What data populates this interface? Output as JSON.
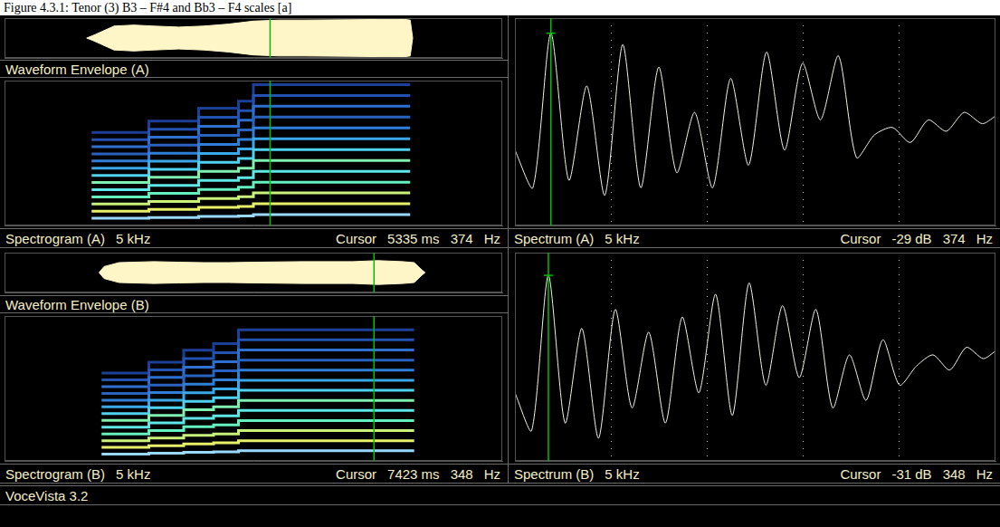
{
  "title": "Figure 4.3.1: Tenor (3) B3 – F#4 and Bb3 – F4 scales [a]",
  "footer": "VoceVista 3.2",
  "chart_data": [
    {
      "type": "area",
      "title": "Waveform Envelope (A)",
      "color": "#fff6c8",
      "tick_labels": false,
      "xlim": [
        0,
        10000
      ],
      "ylim": [
        -1,
        1
      ],
      "cursor": {
        "x": 5335
      },
      "x": [
        1650,
        1800,
        2200,
        2600,
        3000,
        3500,
        4000,
        4500,
        5000,
        5500,
        6000,
        7000,
        8000,
        8150,
        8200
      ],
      "upper": [
        0,
        0.15,
        0.6,
        0.65,
        0.6,
        0.55,
        0.6,
        0.7,
        0.85,
        0.9,
        0.9,
        0.92,
        0.95,
        0.9,
        0
      ],
      "lower": [
        0,
        -0.15,
        -0.6,
        -0.65,
        -0.6,
        -0.55,
        -0.6,
        -0.7,
        -0.85,
        -0.9,
        -0.9,
        -0.92,
        -0.95,
        -0.9,
        0
      ]
    },
    {
      "type": "spectrogram",
      "title": "Spectrogram (A)",
      "annotations": [
        "5 kHz",
        "Cursor",
        "5335 ms",
        "374",
        "Hz"
      ],
      "tick_labels": false,
      "xlim": [
        0,
        10000
      ],
      "ylim": [
        0,
        5000
      ],
      "cursor": {
        "x": 5335
      },
      "x": [
        1750,
        2900,
        2900,
        3900,
        3900,
        4700,
        4700,
        5000,
        5000,
        8150
      ],
      "series": [
        {
          "color": "#9ad9ff",
          "values": [
            247,
            247,
            277,
            277,
            311,
            311,
            330,
            330,
            374,
            374
          ]
        },
        {
          "color": "#e8f06a",
          "values": [
            494,
            494,
            554,
            554,
            622,
            622,
            660,
            660,
            748,
            748
          ]
        },
        {
          "color": "#c9f27a",
          "values": [
            741,
            741,
            831,
            831,
            933,
            933,
            990,
            990,
            1122,
            1122
          ]
        },
        {
          "color": "#64f0c0",
          "values": [
            988,
            988,
            1108,
            1108,
            1244,
            1244,
            1320,
            1320,
            1496,
            1496
          ]
        },
        {
          "color": "#5fe6e6",
          "values": [
            1235,
            1235,
            1385,
            1385,
            1555,
            1555,
            1650,
            1650,
            1870,
            1870
          ]
        },
        {
          "color": "#7ff0b0",
          "values": [
            1482,
            1482,
            1662,
            1662,
            1866,
            1866,
            1980,
            1980,
            2244,
            2244
          ]
        },
        {
          "color": "#4fd2f0",
          "values": [
            1729,
            1729,
            1939,
            1939,
            2177,
            2177,
            2310,
            2310,
            2618,
            2618
          ]
        },
        {
          "color": "#3aa8e8",
          "values": [
            1976,
            1976,
            2216,
            2216,
            2488,
            2488,
            2640,
            2640,
            2992,
            2992
          ]
        },
        {
          "color": "#2f7fd8",
          "values": [
            2223,
            2223,
            2493,
            2493,
            2799,
            2799,
            2970,
            2970,
            3366,
            3366
          ]
        },
        {
          "color": "#2a62c0",
          "values": [
            2470,
            2470,
            2770,
            2770,
            3110,
            3110,
            3300,
            3300,
            3740,
            3740
          ]
        },
        {
          "color": "#2f6fd0",
          "values": [
            2717,
            2717,
            3047,
            3047,
            3421,
            3421,
            3630,
            3630,
            4114,
            4114
          ]
        },
        {
          "color": "#2452b0",
          "values": [
            2964,
            2964,
            3324,
            3324,
            3732,
            3732,
            3960,
            3960,
            4488,
            4488
          ]
        },
        {
          "color": "#1c3f98",
          "values": [
            3211,
            3211,
            3601,
            3601,
            4043,
            4043,
            4290,
            4290,
            4862,
            4862
          ]
        }
      ]
    },
    {
      "type": "line",
      "title": "Spectrum (A)",
      "annotations": [
        "5 kHz",
        "Cursor",
        "-29 dB",
        "374",
        "Hz"
      ],
      "color": "#f2f2e6",
      "grid": true,
      "tick_labels": false,
      "xlim": [
        0,
        5000
      ],
      "ylim": [
        -80,
        -25
      ],
      "xticks": [
        1000,
        2000,
        3000,
        4000
      ],
      "cursor": {
        "x": 374,
        "y": -29
      },
      "x": [
        0,
        187,
        374,
        561,
        748,
        935,
        1122,
        1309,
        1496,
        1683,
        1870,
        2057,
        2244,
        2431,
        2618,
        2805,
        2992,
        3179,
        3366,
        3553,
        3740,
        3927,
        4114,
        4301,
        4488,
        4675,
        4862,
        5000
      ],
      "values": [
        -60,
        -70,
        -29,
        -68,
        -43,
        -72,
        -32,
        -70,
        -38,
        -66,
        -50,
        -70,
        -41,
        -64,
        -34,
        -60,
        -37,
        -52,
        -35,
        -62,
        -56,
        -54,
        -58,
        -52,
        -55,
        -50,
        -53,
        -51
      ]
    },
    {
      "type": "area",
      "title": "Waveform Envelope (B)",
      "color": "#fff6c8",
      "tick_labels": false,
      "xlim": [
        0,
        10000
      ],
      "ylim": [
        -1,
        1
      ],
      "cursor": {
        "x": 7423
      },
      "x": [
        1900,
        2000,
        2300,
        3000,
        3500,
        4000,
        4500,
        5000,
        6000,
        7000,
        7500,
        8000,
        8230,
        8400,
        8450
      ],
      "upper": [
        0,
        0.3,
        0.5,
        0.55,
        0.52,
        0.5,
        0.5,
        0.52,
        0.55,
        0.55,
        0.6,
        0.55,
        0.5,
        0.1,
        0
      ],
      "lower": [
        0,
        -0.3,
        -0.5,
        -0.55,
        -0.52,
        -0.5,
        -0.5,
        -0.52,
        -0.55,
        -0.55,
        -0.6,
        -0.55,
        -0.5,
        -0.1,
        0
      ]
    },
    {
      "type": "spectrogram",
      "title": "Spectrogram (B)",
      "annotations": [
        "5 kHz",
        "Cursor",
        "7423 ms",
        "348",
        "Hz"
      ],
      "tick_labels": false,
      "xlim": [
        0,
        10000
      ],
      "ylim": [
        0,
        5000
      ],
      "cursor": {
        "x": 7423
      },
      "x": [
        1950,
        2900,
        2900,
        3600,
        3600,
        4200,
        4200,
        4700,
        4700,
        8230
      ],
      "series": [
        {
          "color": "#9ad9ff",
          "values": [
            233,
            233,
            262,
            262,
            294,
            294,
            311,
            311,
            348,
            348
          ]
        },
        {
          "color": "#e8f06a",
          "values": [
            466,
            466,
            524,
            524,
            588,
            588,
            622,
            622,
            696,
            696
          ]
        },
        {
          "color": "#c9f27a",
          "values": [
            699,
            699,
            786,
            786,
            882,
            882,
            933,
            933,
            1044,
            1044
          ]
        },
        {
          "color": "#64f0c0",
          "values": [
            932,
            932,
            1048,
            1048,
            1176,
            1176,
            1244,
            1244,
            1392,
            1392
          ]
        },
        {
          "color": "#5fe6e6",
          "values": [
            1165,
            1165,
            1310,
            1310,
            1470,
            1470,
            1555,
            1555,
            1740,
            1740
          ]
        },
        {
          "color": "#7ff0b0",
          "values": [
            1398,
            1398,
            1572,
            1572,
            1764,
            1764,
            1866,
            1866,
            2088,
            2088
          ]
        },
        {
          "color": "#4fd2f0",
          "values": [
            1631,
            1631,
            1834,
            1834,
            2058,
            2058,
            2177,
            2177,
            2436,
            2436
          ]
        },
        {
          "color": "#3aa8e8",
          "values": [
            1864,
            1864,
            2096,
            2096,
            2352,
            2352,
            2488,
            2488,
            2784,
            2784
          ]
        },
        {
          "color": "#2f7fd8",
          "values": [
            2097,
            2097,
            2358,
            2358,
            2646,
            2646,
            2799,
            2799,
            3132,
            3132
          ]
        },
        {
          "color": "#2a62c0",
          "values": [
            2330,
            2330,
            2620,
            2620,
            2940,
            2940,
            3110,
            3110,
            3480,
            3480
          ]
        },
        {
          "color": "#2f6fd0",
          "values": [
            2563,
            2563,
            2882,
            2882,
            3234,
            3234,
            3421,
            3421,
            3828,
            3828
          ]
        },
        {
          "color": "#2452b0",
          "values": [
            2796,
            2796,
            3144,
            3144,
            3528,
            3528,
            3732,
            3732,
            4176,
            4176
          ]
        },
        {
          "color": "#1c3f98",
          "values": [
            3029,
            3029,
            3406,
            3406,
            3822,
            3822,
            4043,
            4043,
            4524,
            4524
          ]
        }
      ]
    },
    {
      "type": "line",
      "title": "Spectrum (B)",
      "annotations": [
        "5 kHz",
        "Cursor",
        "-31 dB",
        "348",
        "Hz"
      ],
      "color": "#f2f2e6",
      "grid": true,
      "tick_labels": false,
      "xlim": [
        0,
        5000
      ],
      "ylim": [
        -80,
        -25
      ],
      "xticks": [
        1000,
        2000,
        3000,
        4000
      ],
      "cursor": {
        "x": 348,
        "y": -31
      },
      "x": [
        0,
        174,
        348,
        522,
        696,
        870,
        1044,
        1218,
        1392,
        1566,
        1740,
        1914,
        2088,
        2262,
        2436,
        2610,
        2784,
        2958,
        3132,
        3306,
        3480,
        3654,
        3828,
        4002,
        4176,
        4350,
        4524,
        4698,
        4872,
        5000
      ],
      "values": [
        -62,
        -72,
        -31,
        -70,
        -45,
        -74,
        -40,
        -66,
        -46,
        -70,
        -42,
        -62,
        -36,
        -68,
        -33,
        -60,
        -39,
        -58,
        -40,
        -66,
        -52,
        -64,
        -48,
        -60,
        -55,
        -52,
        -56,
        -50,
        -53,
        -51
      ]
    }
  ]
}
